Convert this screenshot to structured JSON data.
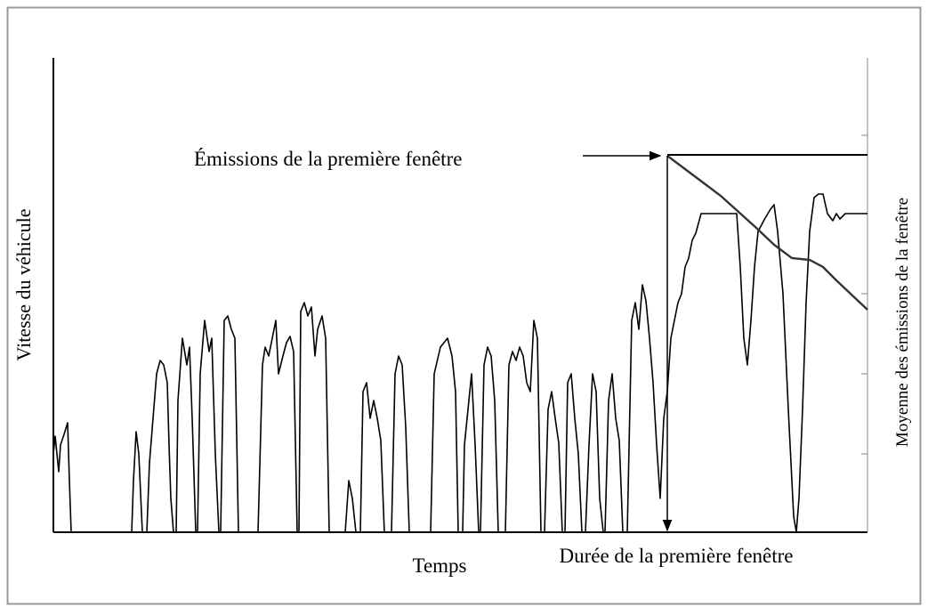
{
  "labels": {
    "emissions_first_window": "Émissions de la première fenêtre",
    "vehicle_speed": "Vitesse du véhicule",
    "window_emissions_average": "Moyenne des émissions de la fenêtre",
    "time": "Temps",
    "first_window_duration": "Durée de la première fenêtre"
  }
}
